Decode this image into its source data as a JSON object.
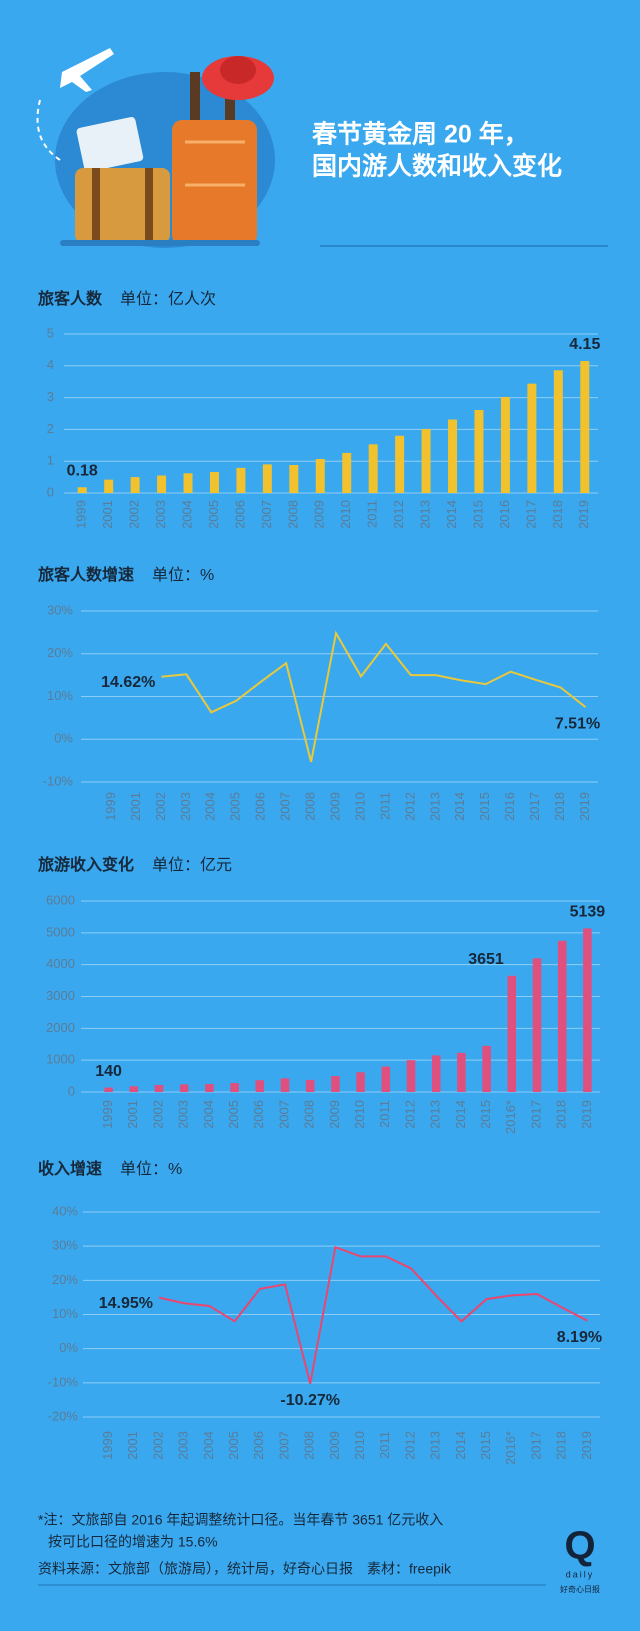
{
  "header": {
    "title": [
      "春节黄金周 20 年，",
      "国内游人数和收入变化"
    ]
  },
  "chart_data": [
    {
      "type": "bar",
      "title": "旅客人数",
      "unit": "单位：亿人次",
      "color": "#f2c12e",
      "categories": [
        "1999",
        "2001",
        "2002",
        "2003",
        "2004",
        "2005",
        "2006",
        "2007",
        "2008",
        "2009",
        "2010",
        "2011",
        "2012",
        "2013",
        "2014",
        "2015",
        "2016",
        "2017",
        "2018",
        "2019"
      ],
      "values": [
        0.18,
        0.42,
        0.5,
        0.55,
        0.62,
        0.66,
        0.79,
        0.9,
        0.88,
        1.07,
        1.26,
        1.53,
        1.8,
        2.01,
        2.31,
        2.61,
        3.02,
        3.44,
        3.86,
        4.15
      ],
      "value_labels": [
        "0.18",
        null,
        null,
        null,
        null,
        null,
        null,
        null,
        null,
        null,
        null,
        null,
        null,
        null,
        null,
        null,
        null,
        null,
        null,
        "4.15"
      ],
      "ylim": [
        0,
        5
      ],
      "yticks": [
        0,
        1,
        2,
        3,
        4,
        5
      ],
      "grid": true
    },
    {
      "type": "line",
      "title": "旅客人数增速",
      "unit": "单位：%",
      "color": "#e9c93a",
      "categories": [
        "1999",
        "2001",
        "2002",
        "2003",
        "2004",
        "2005",
        "2006",
        "2007",
        "2008",
        "2009",
        "2010",
        "2011",
        "2012",
        "2013",
        "2014",
        "2015",
        "2016",
        "2017",
        "2018",
        "2019"
      ],
      "values": [
        null,
        null,
        14.62,
        15.2,
        6.3,
        9.0,
        13.5,
        17.8,
        -5.3,
        24.8,
        14.7,
        22.3,
        15.0,
        15.0,
        13.8,
        12.9,
        15.8,
        13.9,
        12.1,
        7.51
      ],
      "value_labels": [
        null,
        null,
        "14.62%",
        null,
        null,
        null,
        null,
        null,
        null,
        null,
        null,
        null,
        null,
        null,
        null,
        null,
        null,
        null,
        null,
        "7.51%"
      ],
      "ylim": [
        -10,
        30
      ],
      "yticks": [
        {
          "value": -10,
          "label": "-10%"
        },
        {
          "value": 0,
          "label": "0%"
        },
        {
          "value": 10,
          "label": "10%"
        },
        {
          "value": 20,
          "label": "20%"
        },
        {
          "value": 30,
          "label": "30%"
        }
      ],
      "grid": true
    },
    {
      "type": "bar",
      "title": "旅游收入变化",
      "unit": "单位：亿元",
      "color": "#e0507e",
      "categories": [
        "1999",
        "2001",
        "2002",
        "2003",
        "2004",
        "2005",
        "2006",
        "2007",
        "2008",
        "2009",
        "2010",
        "2011",
        "2012",
        "2013",
        "2014",
        "2015",
        "2016*",
        "2017",
        "2018",
        "2019"
      ],
      "values": [
        140,
        180,
        220,
        240,
        250,
        280,
        370,
        430,
        380,
        500,
        620,
        800,
        1000,
        1150,
        1230,
        1450,
        3651,
        4200,
        4750,
        5139
      ],
      "value_labels": [
        "140",
        null,
        null,
        null,
        null,
        null,
        null,
        null,
        null,
        null,
        null,
        null,
        null,
        null,
        null,
        null,
        "3651",
        null,
        null,
        "5139"
      ],
      "ylim": [
        0,
        6000
      ],
      "yticks": [
        0,
        1000,
        2000,
        3000,
        4000,
        5000,
        6000
      ],
      "grid": true
    },
    {
      "type": "line",
      "title": "收入增速",
      "unit": "单位：%",
      "color": "#ea4670",
      "categories": [
        "1999",
        "2001",
        "2002",
        "2003",
        "2004",
        "2005",
        "2006",
        "2007",
        "2008",
        "2009",
        "2010",
        "2011",
        "2012",
        "2013",
        "2014",
        "2015",
        "2016*",
        "2017",
        "2018",
        "2019"
      ],
      "values": [
        null,
        null,
        14.95,
        13.3,
        12.5,
        8.0,
        17.5,
        18.8,
        -10.27,
        29.7,
        27.0,
        27.0,
        23.5,
        15.5,
        8.0,
        14.5,
        15.6,
        16.0,
        12.0,
        8.19
      ],
      "value_labels": [
        null,
        null,
        "14.95%",
        null,
        null,
        null,
        null,
        null,
        "-10.27%",
        null,
        null,
        null,
        null,
        null,
        null,
        null,
        null,
        null,
        null,
        "8.19%"
      ],
      "ylim": [
        -20,
        40
      ],
      "yticks": [
        {
          "value": -20,
          "label": "-20%"
        },
        {
          "value": -10,
          "label": "-10%"
        },
        {
          "value": 0,
          "label": "0%"
        },
        {
          "value": 10,
          "label": "10%"
        },
        {
          "value": 20,
          "label": "20%"
        },
        {
          "value": 30,
          "label": "30%"
        },
        {
          "value": 40,
          "label": "40%"
        }
      ],
      "grid": true
    }
  ],
  "footer": {
    "note": [
      "*注：文旅部自 2016 年起调整统计口径。当年春节 3651 亿元收入",
      "按可比口径的增速为 15.6%"
    ],
    "source": "资料来源：文旅部（旅游局），统计局，好奇心日报　素材：freepik",
    "logo": {
      "mark": "Q",
      "word": "daily",
      "name": "好奇心日报"
    }
  }
}
